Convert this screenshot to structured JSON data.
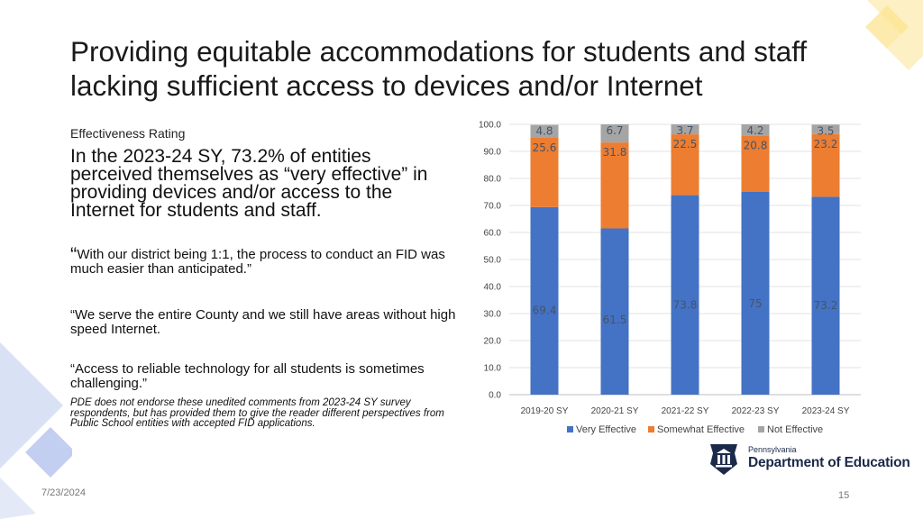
{
  "slide": {
    "title": "Providing equitable accommodations for students and staff lacking sufficient access to devices and/or Internet",
    "effectiveness_label": "Effectiveness Rating",
    "stat_text": "In the 2023-24 SY, 73.2% of entities perceived themselves as “very effective” in providing devices and/or access to the Internet for students and staff.",
    "quote1_open": "“",
    "quote1_text": "With our district being 1:1, the process to conduct an FID was much easier than anticipated.”",
    "quote2": "“We serve the entire County  and we still have areas without high speed Internet.",
    "quote3": "“Access to reliable technology for all students is sometimes challenging.”",
    "disclaimer": "PDE does not endorse these unedited comments from 2023-24 SY survey respondents, but has provided them to give the reader different perspectives from Public School entities with accepted FID applications.",
    "date": "7/23/2024",
    "page_number": "15"
  },
  "logo": {
    "small_text": "Pennsylvania",
    "big_text": "Department of Education",
    "icon": "pa-keystone-icon"
  },
  "colors": {
    "very_effective": "#4472c4",
    "somewhat_effective": "#ed7d31",
    "not_effective": "#a5a5a5",
    "decor_blue": "#c9d3f0",
    "decor_yellow": "#fbe7a1",
    "logo_navy": "#1b2a4a"
  },
  "chart_data": {
    "type": "bar",
    "stacked": true,
    "categories": [
      "2019-20 SY",
      "2020-21 SY",
      "2021-22 SY",
      "2022-23 SY",
      "2023-24 SY"
    ],
    "series": [
      {
        "name": "Very Effective",
        "values": [
          69.4,
          61.5,
          73.8,
          75,
          73.2
        ],
        "labels": [
          "69.4",
          "61.5",
          "73.8",
          "75",
          "73.2"
        ]
      },
      {
        "name": "Somewhat Effective",
        "values": [
          25.6,
          31.8,
          22.5,
          20.8,
          23.2
        ],
        "labels": [
          "25.6",
          "31.8",
          "22.5",
          "20.8",
          "23.2"
        ]
      },
      {
        "name": "Not Effective",
        "values": [
          4.8,
          6.7,
          3.7,
          4.2,
          3.5
        ],
        "labels": [
          "4.8",
          "6.7",
          "3.7",
          "4.2",
          "3.5"
        ]
      }
    ],
    "ylim": [
      0,
      100
    ],
    "yticks": [
      "0.0",
      "10.0",
      "20.0",
      "30.0",
      "40.0",
      "50.0",
      "60.0",
      "70.0",
      "80.0",
      "90.0",
      "100.0"
    ],
    "grid": true,
    "legend": "bottom"
  }
}
